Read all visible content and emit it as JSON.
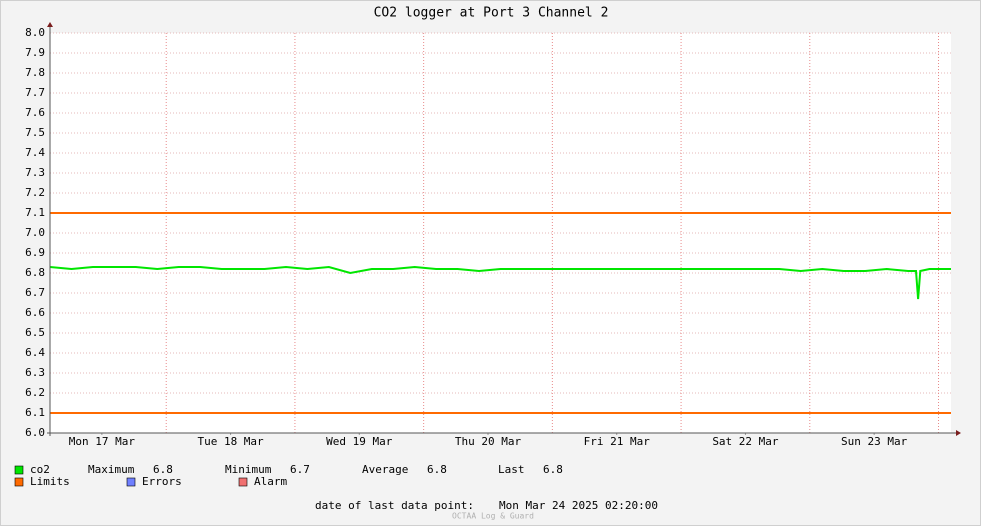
{
  "chart_data": {
    "type": "line",
    "title": "CO2 logger at Port 3 Channel 2",
    "x": [
      2.33,
      6.33,
      10.33,
      14.33,
      18.33,
      22.33,
      26.33,
      30.33,
      34.33,
      38.33,
      42.33,
      46.33,
      50.33,
      54.33,
      58.33,
      62.33,
      66.33,
      70.33,
      74.33,
      78.33,
      82.33,
      86.33,
      90.33,
      94.33,
      98.33,
      102.33,
      106.33,
      110.33,
      114.33,
      118.33,
      122.33,
      126.33,
      130.33,
      134.33,
      138.33,
      142.33,
      146.33,
      150.33,
      154.33,
      158.33,
      162.33,
      163.8,
      164.2,
      164.6,
      166.33,
      170.33
    ],
    "series": [
      {
        "name": "co2",
        "color": "#00e600",
        "values": [
          6.83,
          6.82,
          6.83,
          6.83,
          6.83,
          6.82,
          6.83,
          6.83,
          6.82,
          6.82,
          6.82,
          6.83,
          6.82,
          6.83,
          6.8,
          6.82,
          6.82,
          6.83,
          6.82,
          6.82,
          6.81,
          6.82,
          6.82,
          6.82,
          6.82,
          6.82,
          6.82,
          6.82,
          6.82,
          6.82,
          6.82,
          6.82,
          6.82,
          6.82,
          6.82,
          6.81,
          6.82,
          6.81,
          6.81,
          6.82,
          6.81,
          6.81,
          6.67,
          6.81,
          6.82,
          6.82
        ]
      }
    ],
    "stats": [
      {
        "label": "Maximum",
        "value": 6.8
      },
      {
        "label": "Minimum",
        "value": 6.7
      },
      {
        "label": "Average",
        "value": 6.8
      },
      {
        "label": "Last",
        "value": 6.8
      }
    ],
    "limits": {
      "name": "Limits",
      "color": "#ff6a00",
      "values": [
        7.1,
        6.1
      ]
    },
    "legend_extra": [
      {
        "name": "Errors",
        "color": "#6f7fff"
      },
      {
        "name": "Alarm",
        "color": "#f07070"
      }
    ],
    "xlim": [
      2.33,
      170.33
    ],
    "xticks": [
      {
        "value": 12,
        "label": "Mon 17 Mar"
      },
      {
        "value": 36,
        "label": "Tue 18 Mar"
      },
      {
        "value": 60,
        "label": "Wed 19 Mar"
      },
      {
        "value": 84,
        "label": "Thu 20 Mar"
      },
      {
        "value": 108,
        "label": "Fri 21 Mar"
      },
      {
        "value": 132,
        "label": "Sat 22 Mar"
      },
      {
        "value": 156,
        "label": "Sun 23 Mar"
      }
    ],
    "xgrid": [
      24,
      48,
      72,
      96,
      120,
      144,
      168
    ],
    "ylim": [
      6,
      8
    ],
    "yticks": [
      {
        "value": 6,
        "label": "6.0"
      },
      6.1,
      6.2,
      6.3,
      6.4,
      6.5,
      6.6,
      6.7,
      6.8,
      6.9,
      {
        "value": 7,
        "label": "7.0"
      },
      7.1,
      7.2,
      7.3,
      7.4,
      7.5,
      7.6,
      7.7,
      7.8,
      7.9,
      {
        "value": 8,
        "label": "8.0"
      }
    ],
    "grid": true,
    "footer": {
      "label": "date of last data point:",
      "value": "Mon Mar 24 2025 02:20:00"
    },
    "watermark": "OCTAA Log & Guard"
  }
}
